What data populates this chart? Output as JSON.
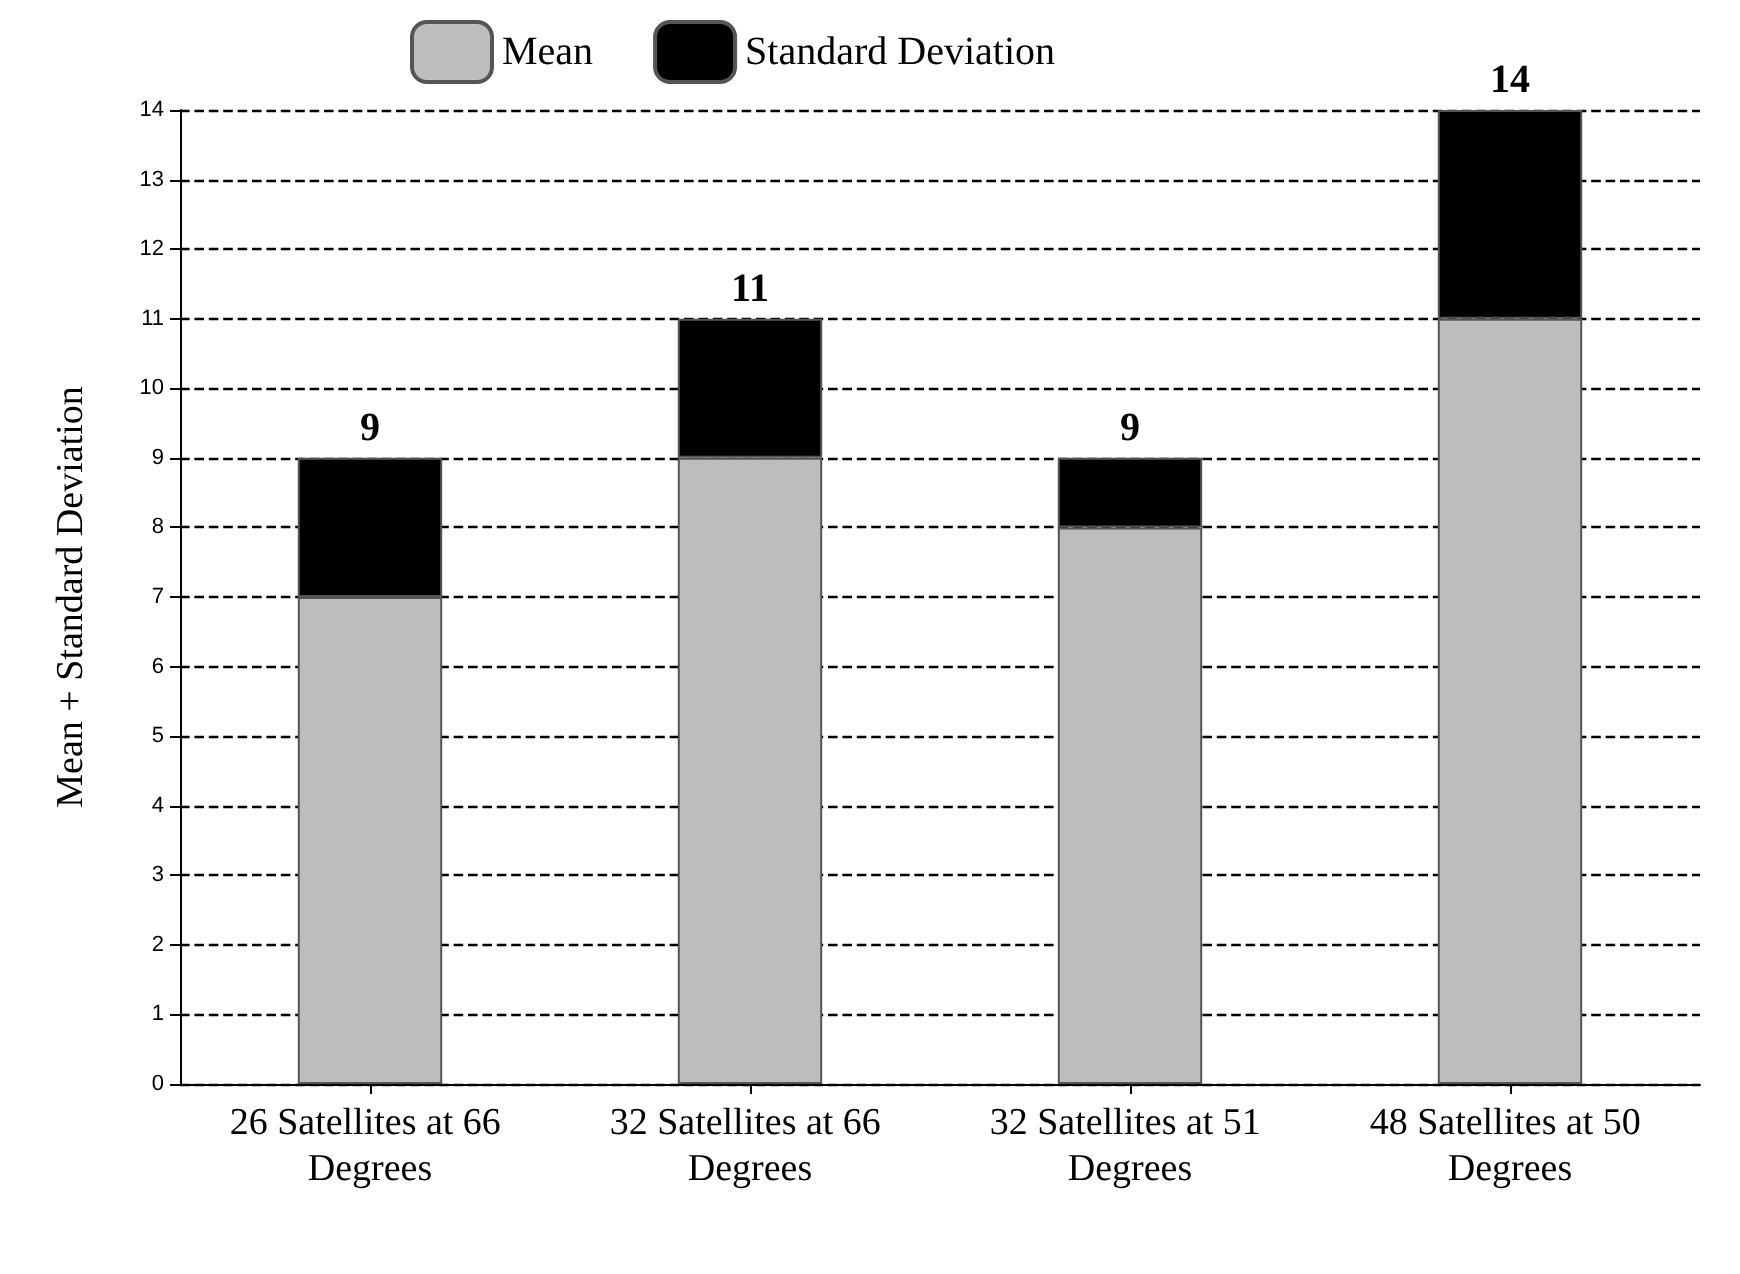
{
  "chart_data": {
    "type": "bar",
    "stacked": true,
    "ylabel": "Mean + Standard Deviation",
    "categories": [
      "26 Satellites at 66 Degrees",
      "32 Satellites at 66 Degrees",
      "32 Satellites at 51 Degrees",
      "48 Satellites at 50 Degrees"
    ],
    "series": [
      {
        "name": "Mean",
        "color": "#bdbdbd",
        "values": [
          7,
          9,
          8,
          11
        ]
      },
      {
        "name": "Standard Deviation",
        "color": "#000000",
        "values": [
          2,
          2,
          1,
          3
        ]
      }
    ],
    "totals": [
      "9",
      "11",
      "9",
      "14"
    ],
    "ylim": [
      0,
      14
    ],
    "yticks": [
      0,
      1,
      2,
      3,
      4,
      5,
      6,
      7,
      8,
      9,
      10,
      11,
      12,
      13,
      14
    ],
    "grid": "y",
    "legend": "top"
  }
}
